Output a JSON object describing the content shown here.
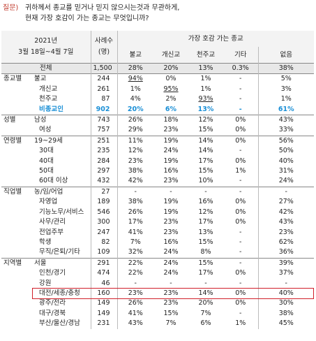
{
  "question": {
    "label": "질문)",
    "lines": [
      "귀하께서 종교를 믿거나 믿지 않으시는것과 무관하게,",
      "현재 가장 호감이 가는 종교는 무엇입니까?"
    ]
  },
  "table": {
    "period": [
      "2021년",
      "3월 18일~4월 7일"
    ],
    "n_header": [
      "사례수",
      "(명)"
    ],
    "group_header": "가장 호감 가는 종교",
    "columns": [
      "불교",
      "개신교",
      "천주교",
      "기타",
      "없음"
    ],
    "total": {
      "label": "전체",
      "n": "1,500",
      "values": [
        "28%",
        "20%",
        "13%",
        "0.3%",
        "38%"
      ]
    },
    "groups": [
      {
        "label": "종교별",
        "rows": [
          {
            "label": "불교",
            "n": "244",
            "values": [
              "94%",
              "0%",
              "1%",
              "-",
              "5%"
            ]
          },
          {
            "label": "개신교",
            "n": "261",
            "values": [
              "1%",
              "95%",
              "1%",
              "-",
              "3%"
            ]
          },
          {
            "label": "천주교",
            "n": "87",
            "values": [
              "4%",
              "2%",
              "93%",
              "-",
              "1%"
            ]
          },
          {
            "label": "비종교인",
            "n": "902",
            "values": [
              "20%",
              "6%",
              "13%",
              "-",
              "61%"
            ]
          }
        ]
      },
      {
        "label": "성별",
        "rows": [
          {
            "label": "남성",
            "n": "743",
            "values": [
              "26%",
              "18%",
              "12%",
              "0%",
              "43%"
            ]
          },
          {
            "label": "여성",
            "n": "757",
            "values": [
              "29%",
              "23%",
              "15%",
              "0%",
              "33%"
            ]
          }
        ]
      },
      {
        "label": "연령별",
        "rows": [
          {
            "label": "19~29세",
            "n": "251",
            "values": [
              "11%",
              "19%",
              "14%",
              "0%",
              "56%"
            ]
          },
          {
            "label": "30대",
            "n": "235",
            "values": [
              "12%",
              "24%",
              "14%",
              "-",
              "50%"
            ]
          },
          {
            "label": "40대",
            "n": "284",
            "values": [
              "23%",
              "19%",
              "17%",
              "0%",
              "40%"
            ]
          },
          {
            "label": "50대",
            "n": "297",
            "values": [
              "38%",
              "16%",
              "15%",
              "1%",
              "31%"
            ]
          },
          {
            "label": "60대 이상",
            "n": "432",
            "values": [
              "42%",
              "23%",
              "10%",
              "-",
              "24%"
            ]
          }
        ]
      },
      {
        "label": "직업별",
        "rows": [
          {
            "label": "농/임/어업",
            "n": "27",
            "values": [
              "-",
              "-",
              "-",
              "-",
              "-"
            ]
          },
          {
            "label": "자영업",
            "n": "189",
            "values": [
              "38%",
              "19%",
              "16%",
              "0%",
              "27%"
            ]
          },
          {
            "label": "기능노무/서비스",
            "n": "546",
            "values": [
              "26%",
              "19%",
              "12%",
              "0%",
              "42%"
            ]
          },
          {
            "label": "사무/관리",
            "n": "300",
            "values": [
              "17%",
              "23%",
              "17%",
              "0%",
              "43%"
            ]
          },
          {
            "label": "전업주부",
            "n": "247",
            "values": [
              "41%",
              "23%",
              "13%",
              "-",
              "23%"
            ]
          },
          {
            "label": "학생",
            "n": "82",
            "values": [
              "7%",
              "16%",
              "15%",
              "-",
              "62%"
            ]
          },
          {
            "label": "무직/은퇴/기타",
            "n": "109",
            "values": [
              "32%",
              "24%",
              "8%",
              "-",
              "36%"
            ]
          }
        ]
      },
      {
        "label": "지역별",
        "rows": [
          {
            "label": "서울",
            "n": "291",
            "values": [
              "22%",
              "24%",
              "15%",
              "-",
              "39%"
            ]
          },
          {
            "label": "인천/경기",
            "n": "474",
            "values": [
              "22%",
              "24%",
              "17%",
              "0%",
              "37%"
            ]
          },
          {
            "label": "강원",
            "n": "46",
            "values": [
              "-",
              "-",
              "-",
              "-",
              "-"
            ]
          },
          {
            "label": "대전/세종/충청",
            "n": "160",
            "values": [
              "23%",
              "23%",
              "14%",
              "0%",
              "40%"
            ]
          },
          {
            "label": "광주/전라",
            "n": "149",
            "values": [
              "26%",
              "23%",
              "20%",
              "0%",
              "30%"
            ]
          },
          {
            "label": "대구/경북",
            "n": "149",
            "values": [
              "41%",
              "15%",
              "7%",
              "-",
              "38%"
            ]
          },
          {
            "label": "부산/울산/경남",
            "n": "231",
            "values": [
              "43%",
              "7%",
              "6%",
              "1%",
              "45%"
            ]
          }
        ]
      }
    ]
  }
}
